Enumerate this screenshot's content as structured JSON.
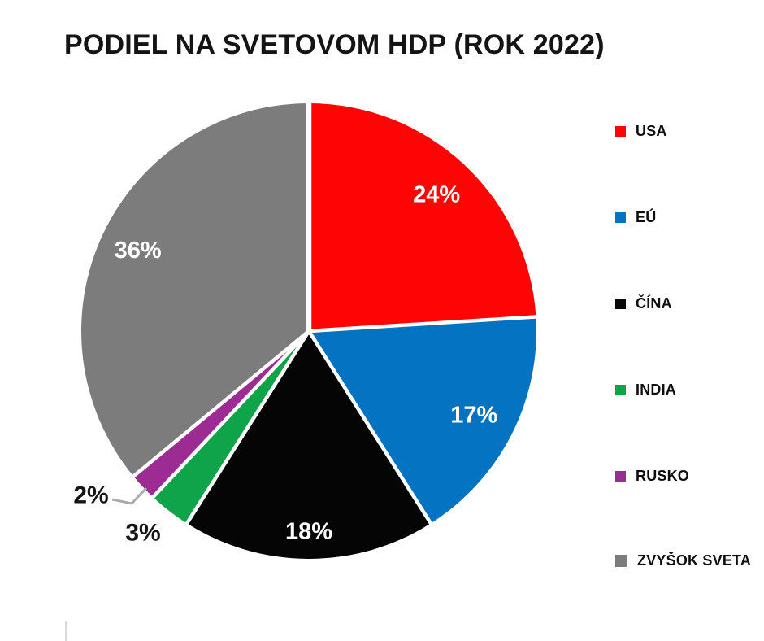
{
  "title": "PODIEL NA SVETOVOM HDP (ROK 2022)",
  "background_color": "#ffffff",
  "chart_data": {
    "type": "pie",
    "title": "PODIEL NA SVETOVOM HDP (ROK 2022)",
    "unit": "%",
    "start_angle_deg": 0,
    "direction": "clockwise",
    "categories": [
      "USA",
      "EÚ",
      "ČÍNA",
      "INDIA",
      "RUSKO",
      "ZVYŠOK SVETA"
    ],
    "values": [
      24,
      17,
      18,
      3,
      2,
      36
    ],
    "labels": [
      "24%",
      "17%",
      "18%",
      "3%",
      "2%",
      "36%"
    ],
    "label_placement": [
      "inside",
      "inside",
      "inside",
      "outside",
      "outside",
      "inside"
    ],
    "colors": [
      "#fe0404",
      "#0473c2",
      "#050505",
      "#0fa449",
      "#9c2b94",
      "#7c7c7c"
    ],
    "inside_label_color": "#ffffff",
    "outside_label_color": "#151515",
    "separator_color": "#ffffff",
    "leader_line_color": "#ababab",
    "legend_position": "right"
  },
  "legend": {
    "items": [
      {
        "label": "USA",
        "color": "#fe0404"
      },
      {
        "label": "EÚ",
        "color": "#0473c2"
      },
      {
        "label": "ČÍNA",
        "color": "#0a0a0a"
      },
      {
        "label": "INDIA",
        "color": "#0fa449"
      },
      {
        "label": "RUSKO",
        "color": "#9c2b94"
      },
      {
        "label": "ZVYŠOK SVETA",
        "color": "#7c7c7c"
      }
    ]
  }
}
